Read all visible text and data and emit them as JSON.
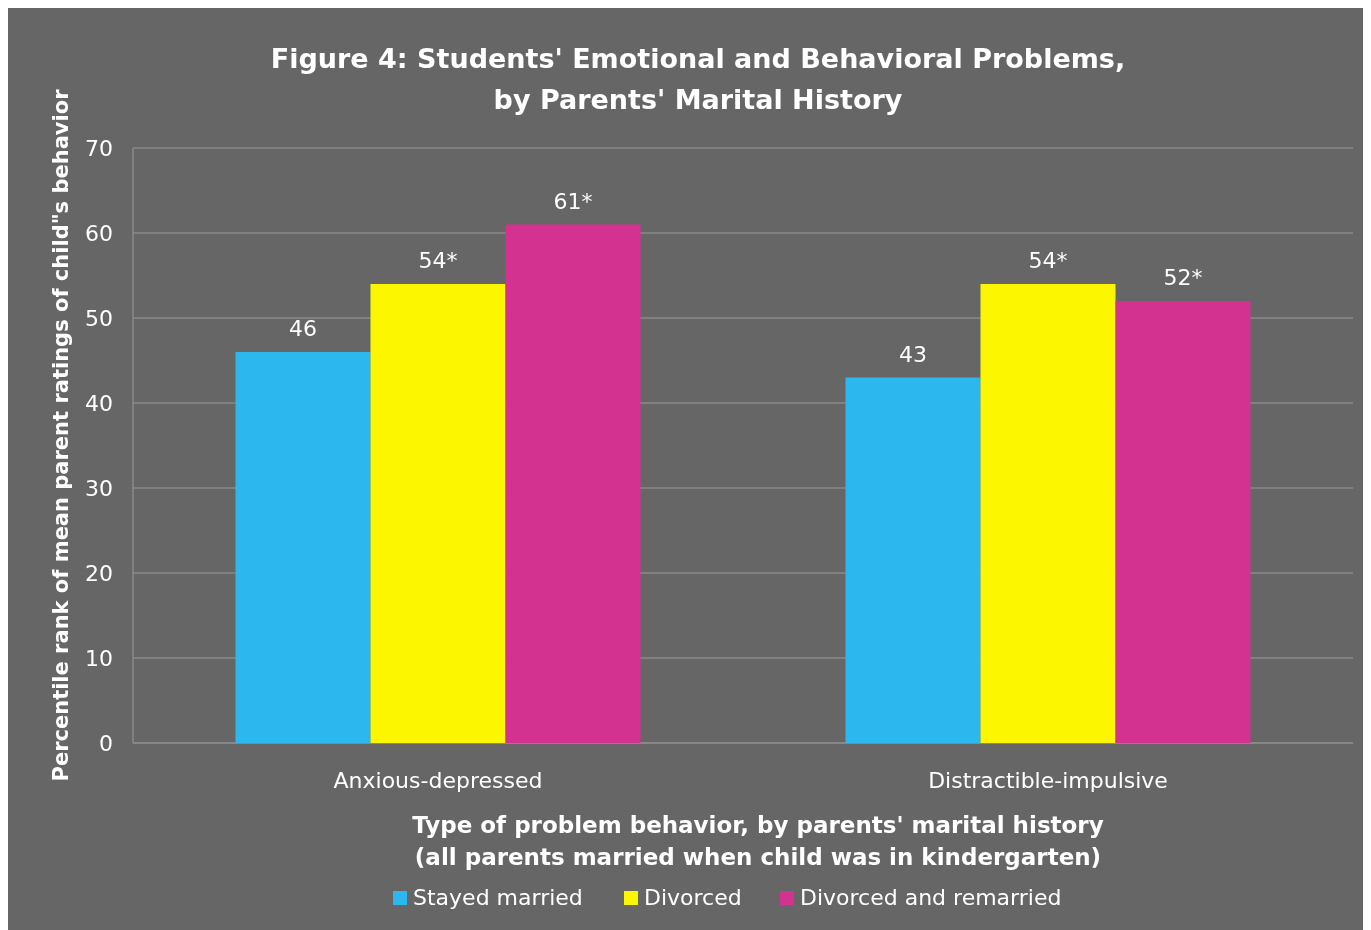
{
  "chart_data": {
    "type": "bar",
    "title": "Figure 4: Students' Emotional and Behavioral Problems,\nby Parents' Marital History",
    "xlabel": "Type of problem behavior, by parents' marital history\n(all parents married when child was in kindergarten)",
    "ylabel": "Percentile rank of mean parent ratings of child\"s behavior",
    "categories": [
      "Anxious-depressed",
      "Distractible-impulsive"
    ],
    "series": [
      {
        "name": "Stayed married",
        "color": "#2cb7ef",
        "values": [
          46,
          43
        ],
        "value_labels": [
          "46",
          "43"
        ]
      },
      {
        "name": "Divorced",
        "color": "#fcf700",
        "values": [
          54,
          54
        ],
        "value_labels": [
          "54*",
          "54*"
        ]
      },
      {
        "name": "Divorced and remarried",
        "color": "#d43291",
        "values": [
          61,
          52
        ],
        "value_labels": [
          "61*",
          "52*"
        ]
      }
    ],
    "ylim": [
      0,
      70
    ],
    "yticks": [
      0,
      10,
      20,
      30,
      40,
      50,
      60,
      70
    ],
    "grid": "y",
    "legend": "bottom"
  }
}
